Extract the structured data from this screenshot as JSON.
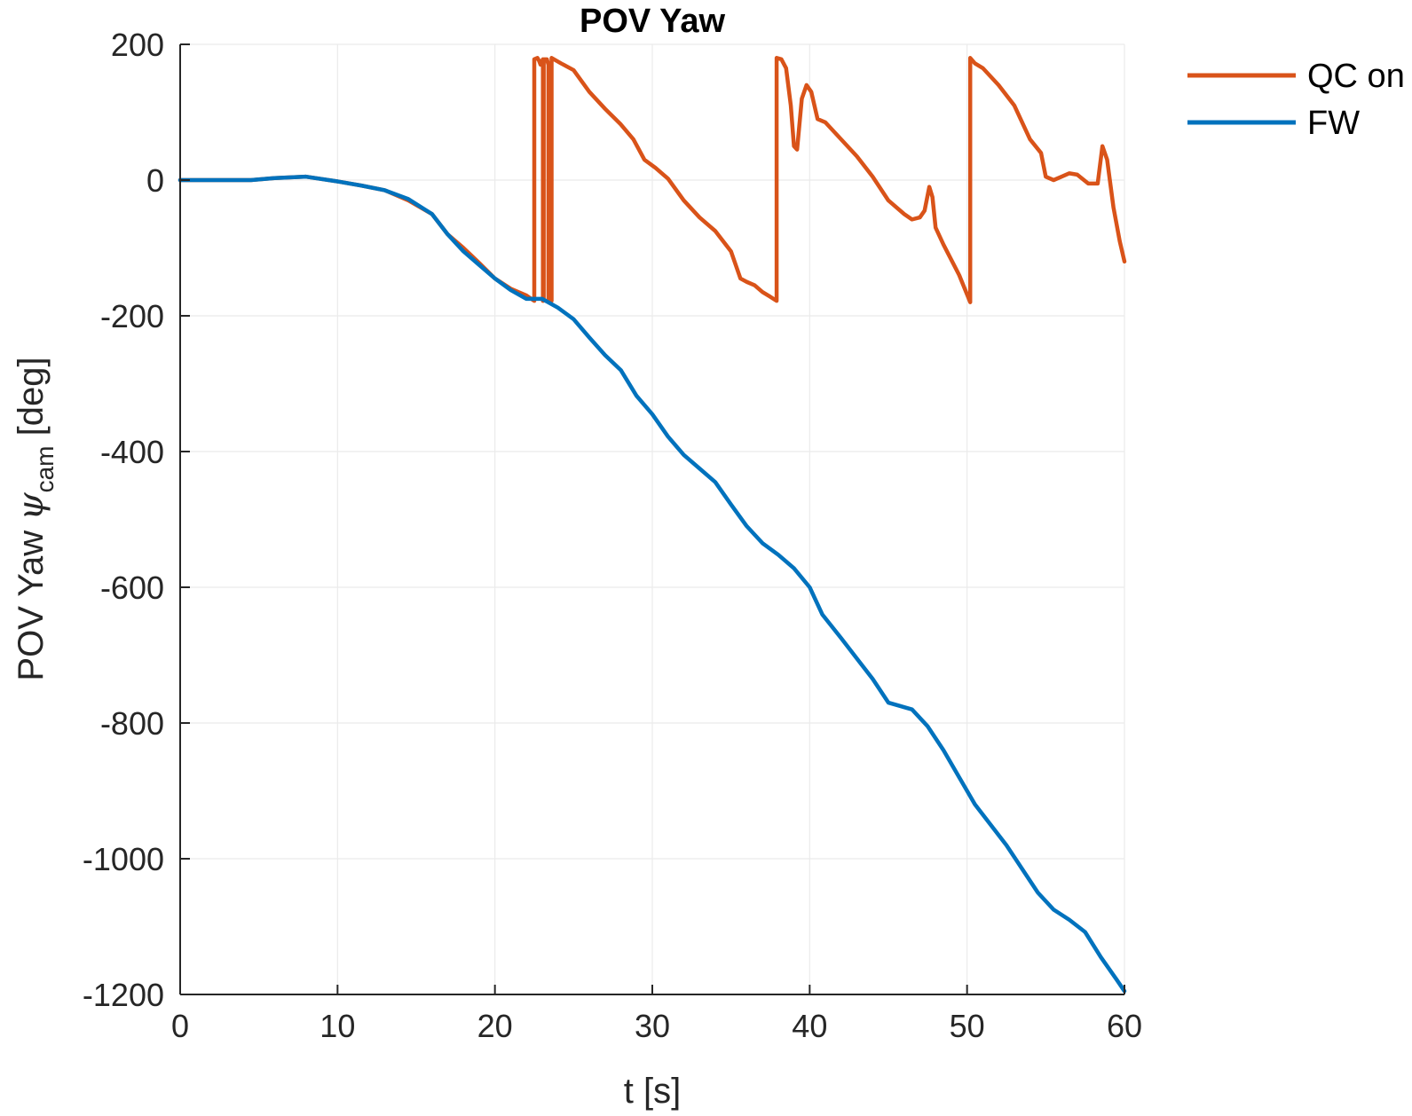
{
  "chart_data": {
    "type": "line",
    "title": "POV Yaw",
    "xlabel": "t [s]",
    "ylabel": {
      "prefix": "POV Yaw ",
      "symbol": "ψ",
      "subscript": "cam",
      "suffix": " [deg]"
    },
    "xlim": [
      0,
      60
    ],
    "ylim": [
      -1200,
      200
    ],
    "xticks": [
      0,
      10,
      20,
      30,
      40,
      50,
      60
    ],
    "yticks": [
      200,
      0,
      -200,
      -400,
      -600,
      -800,
      -1000,
      -1200
    ],
    "xtick_labels": [
      "0",
      "10",
      "20",
      "30",
      "40",
      "50",
      "60"
    ],
    "ytick_labels": [
      "200",
      "0",
      "-200",
      "-400",
      "-600",
      "-800",
      "-1000",
      "-1200"
    ],
    "grid": true,
    "legend_position": "top-right",
    "series": [
      {
        "name": "QC on",
        "color": "#D95319",
        "points": [
          [
            0,
            0
          ],
          [
            2,
            0
          ],
          [
            4.5,
            0
          ],
          [
            6,
            3
          ],
          [
            8,
            5
          ],
          [
            10,
            -2
          ],
          [
            11.5,
            -8
          ],
          [
            13,
            -15
          ],
          [
            14.5,
            -30
          ],
          [
            16,
            -50
          ],
          [
            17,
            -80
          ],
          [
            18,
            -100
          ],
          [
            19,
            -122
          ],
          [
            20,
            -145
          ],
          [
            21,
            -160
          ],
          [
            22,
            -170
          ],
          [
            22.5,
            -178
          ],
          [
            22.5,
            178
          ],
          [
            22.7,
            180
          ],
          [
            22.8,
            176
          ],
          [
            22.9,
            170
          ],
          [
            23.0,
            176
          ],
          [
            23.05,
            178
          ],
          [
            23.05,
            -178
          ],
          [
            23.1,
            -175
          ],
          [
            23.1,
            178
          ],
          [
            23.3,
            178
          ],
          [
            23.4,
            170
          ],
          [
            23.4,
            -178
          ],
          [
            23.6,
            -178
          ],
          [
            23.6,
            180
          ],
          [
            24.2,
            172
          ],
          [
            25,
            162
          ],
          [
            26,
            130
          ],
          [
            27,
            105
          ],
          [
            28,
            82
          ],
          [
            28.8,
            60
          ],
          [
            29.5,
            30
          ],
          [
            30.2,
            18
          ],
          [
            31,
            2
          ],
          [
            32,
            -30
          ],
          [
            33,
            -55
          ],
          [
            34,
            -75
          ],
          [
            35,
            -105
          ],
          [
            35.6,
            -145
          ],
          [
            36,
            -150
          ],
          [
            36.5,
            -155
          ],
          [
            37,
            -165
          ],
          [
            37.5,
            -172
          ],
          [
            37.9,
            -178
          ],
          [
            37.9,
            180
          ],
          [
            38.2,
            178
          ],
          [
            38.5,
            165
          ],
          [
            38.8,
            110
          ],
          [
            39.0,
            50
          ],
          [
            39.2,
            45
          ],
          [
            39.5,
            120
          ],
          [
            39.8,
            140
          ],
          [
            40.1,
            130
          ],
          [
            40.5,
            90
          ],
          [
            41,
            85
          ],
          [
            42,
            60
          ],
          [
            43,
            35
          ],
          [
            44,
            5
          ],
          [
            45,
            -30
          ],
          [
            46,
            -50
          ],
          [
            46.5,
            -58
          ],
          [
            47,
            -55
          ],
          [
            47.3,
            -45
          ],
          [
            47.6,
            -10
          ],
          [
            47.8,
            -25
          ],
          [
            48,
            -70
          ],
          [
            48.5,
            -95
          ],
          [
            49.5,
            -140
          ],
          [
            50.2,
            -180
          ],
          [
            50.2,
            180
          ],
          [
            50.5,
            172
          ],
          [
            51,
            165
          ],
          [
            52,
            140
          ],
          [
            53,
            110
          ],
          [
            54,
            60
          ],
          [
            54.7,
            40
          ],
          [
            55,
            5
          ],
          [
            55.5,
            0
          ],
          [
            56,
            5
          ],
          [
            56.5,
            10
          ],
          [
            57,
            8
          ],
          [
            57.7,
            -5
          ],
          [
            58.3,
            -5
          ],
          [
            58.6,
            50
          ],
          [
            58.9,
            30
          ],
          [
            59.3,
            -40
          ],
          [
            59.7,
            -90
          ],
          [
            60,
            -120
          ]
        ]
      },
      {
        "name": "FW",
        "color": "#0072BD",
        "points": [
          [
            0,
            0
          ],
          [
            2,
            0
          ],
          [
            4.5,
            0
          ],
          [
            6,
            3
          ],
          [
            8,
            5
          ],
          [
            10,
            -2
          ],
          [
            11.5,
            -8
          ],
          [
            13,
            -15
          ],
          [
            14.5,
            -28
          ],
          [
            16,
            -50
          ],
          [
            17,
            -80
          ],
          [
            18,
            -105
          ],
          [
            19,
            -125
          ],
          [
            20,
            -145
          ],
          [
            21,
            -162
          ],
          [
            22,
            -175
          ],
          [
            23,
            -175
          ],
          [
            24,
            -188
          ],
          [
            25,
            -205
          ],
          [
            26,
            -232
          ],
          [
            27,
            -258
          ],
          [
            28,
            -280
          ],
          [
            29,
            -318
          ],
          [
            30,
            -345
          ],
          [
            31,
            -378
          ],
          [
            32,
            -405
          ],
          [
            33,
            -425
          ],
          [
            34,
            -445
          ],
          [
            35,
            -478
          ],
          [
            36,
            -510
          ],
          [
            37,
            -535
          ],
          [
            38,
            -552
          ],
          [
            39,
            -572
          ],
          [
            40,
            -600
          ],
          [
            40.8,
            -640
          ],
          [
            42,
            -675
          ],
          [
            43,
            -705
          ],
          [
            44,
            -735
          ],
          [
            45,
            -770
          ],
          [
            46.5,
            -780
          ],
          [
            47.5,
            -805
          ],
          [
            48.5,
            -840
          ],
          [
            49.5,
            -880
          ],
          [
            50.5,
            -920
          ],
          [
            51.5,
            -950
          ],
          [
            52.5,
            -980
          ],
          [
            53.5,
            -1015
          ],
          [
            54.5,
            -1050
          ],
          [
            55.5,
            -1075
          ],
          [
            56.5,
            -1090
          ],
          [
            57.5,
            -1108
          ],
          [
            58.5,
            -1145
          ],
          [
            59.5,
            -1178
          ],
          [
            60,
            -1195
          ]
        ]
      }
    ]
  }
}
